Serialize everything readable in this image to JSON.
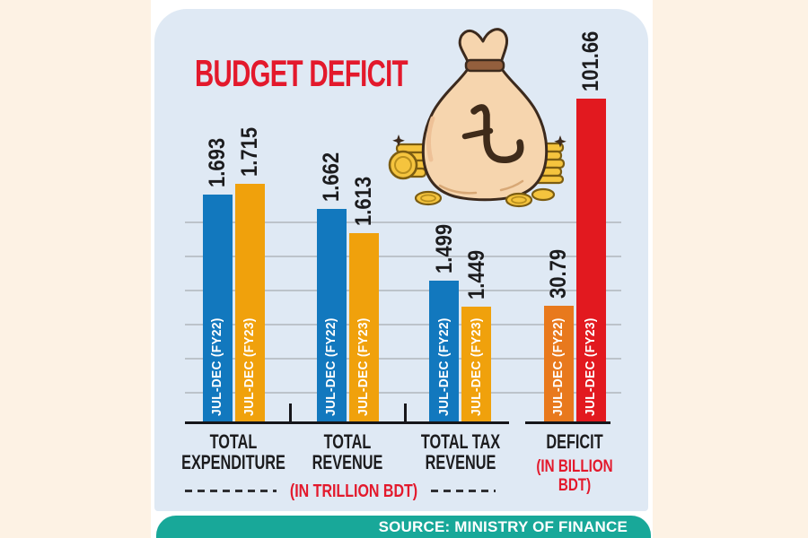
{
  "page": {
    "outer_background": "#fdf2e4",
    "card_background": "#dfe9f4"
  },
  "header": {
    "title": "BUDGET DEFICIT",
    "title_color": "#e3192c"
  },
  "illustration": {
    "name": "money-bag-with-taka-symbol-and-gold-coins",
    "taka_symbol": "৳"
  },
  "chart_data": {
    "type": "bar",
    "title": "BUDGET DEFICIT",
    "categories": [
      "TOTAL EXPENDITURE",
      "TOTAL REVENUE",
      "TOTAL TAX REVENUE",
      "DEFICIT"
    ],
    "categories_lines": [
      [
        "TOTAL",
        "EXPENDITURE"
      ],
      [
        "TOTAL",
        "REVENUE"
      ],
      [
        "TOTAL TAX",
        "REVENUE"
      ],
      [
        "DEFICIT"
      ]
    ],
    "series": [
      {
        "name": "JUL-DEC (FY22)",
        "values": [
          1.693,
          1.662,
          1.499,
          30.79
        ],
        "colors": [
          "#1278be",
          "#1278be",
          "#1278be",
          "#e8791d"
        ]
      },
      {
        "name": "JUL-DEC (FY23)",
        "values": [
          1.715,
          1.613,
          1.449,
          101.66
        ],
        "colors": [
          "#f0a10c",
          "#f0a10c",
          "#f0a10c",
          "#e2191f"
        ]
      }
    ],
    "value_labels": [
      [
        "1.693",
        "1.715"
      ],
      [
        "1.662",
        "1.613"
      ],
      [
        "1.499",
        "1.449"
      ],
      [
        "30.79",
        "101.66"
      ]
    ],
    "units": {
      "trillion_note": "(IN TRILLION BDT)",
      "deficit_note": "(IN BILLION BDT)"
    },
    "layout_hints": {
      "grid": true,
      "gridline_count": 6,
      "value_label_rotation": -90,
      "bar_label_rotation": -90,
      "separate_baseline_for_deficit": true,
      "units_axis_note": "first three groups in trillion BDT, deficit in billion BDT"
    }
  },
  "footer": {
    "source": "SOURCE: MINISTRY OF FINANCE",
    "background": "#18a899"
  }
}
